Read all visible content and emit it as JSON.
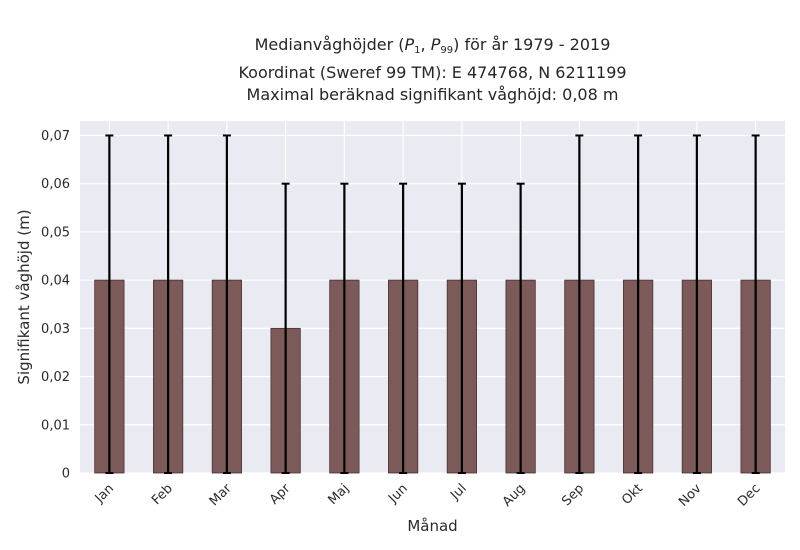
{
  "title": {
    "line1_prefix": "Medianvåghöjder (",
    "p_low_var": "P",
    "p_low_sub": "1",
    "p_sep": ", ",
    "p_high_var": "P",
    "p_high_sub": "99",
    "line1_suffix": ") för år 1979 - 2019",
    "line2": "Koordinat (Sweref 99 TM): E 474768, N 6211199",
    "line3": "Maximal beräknad signifikant våghöjd: 0,08 m"
  },
  "colors": {
    "plot_background": "#eaeaf2",
    "grid": "#ffffff",
    "bar_fill": "#7d5a5a",
    "bar_edge": "#4a3030",
    "error_bar": "#000000"
  },
  "chart_data": {
    "type": "bar",
    "xlabel": "Månad",
    "ylabel": "Signifikant våghöjd (m)",
    "ylim": [
      0,
      0.073
    ],
    "yticks": [
      0,
      0.01,
      0.02,
      0.03,
      0.04,
      0.05,
      0.06,
      0.07
    ],
    "ytick_labels": [
      "0",
      "0,01",
      "0,02",
      "0,03",
      "0,04",
      "0,05",
      "0,06",
      "0,07"
    ],
    "grid": true,
    "categories": [
      "Jan",
      "Feb",
      "Mar",
      "Apr",
      "Maj",
      "Jun",
      "Jul",
      "Aug",
      "Sep",
      "Okt",
      "Nov",
      "Dec"
    ],
    "series": [
      {
        "values": [
          0.04,
          0.04,
          0.04,
          0.03,
          0.04,
          0.04,
          0.04,
          0.04,
          0.04,
          0.04,
          0.04,
          0.04
        ],
        "error_low": [
          0,
          0,
          0,
          0,
          0,
          0,
          0,
          0,
          0,
          0,
          0,
          0
        ],
        "error_high": [
          0.07,
          0.07,
          0.07,
          0.06,
          0.06,
          0.06,
          0.06,
          0.06,
          0.07,
          0.07,
          0.07,
          0.07
        ]
      }
    ]
  }
}
